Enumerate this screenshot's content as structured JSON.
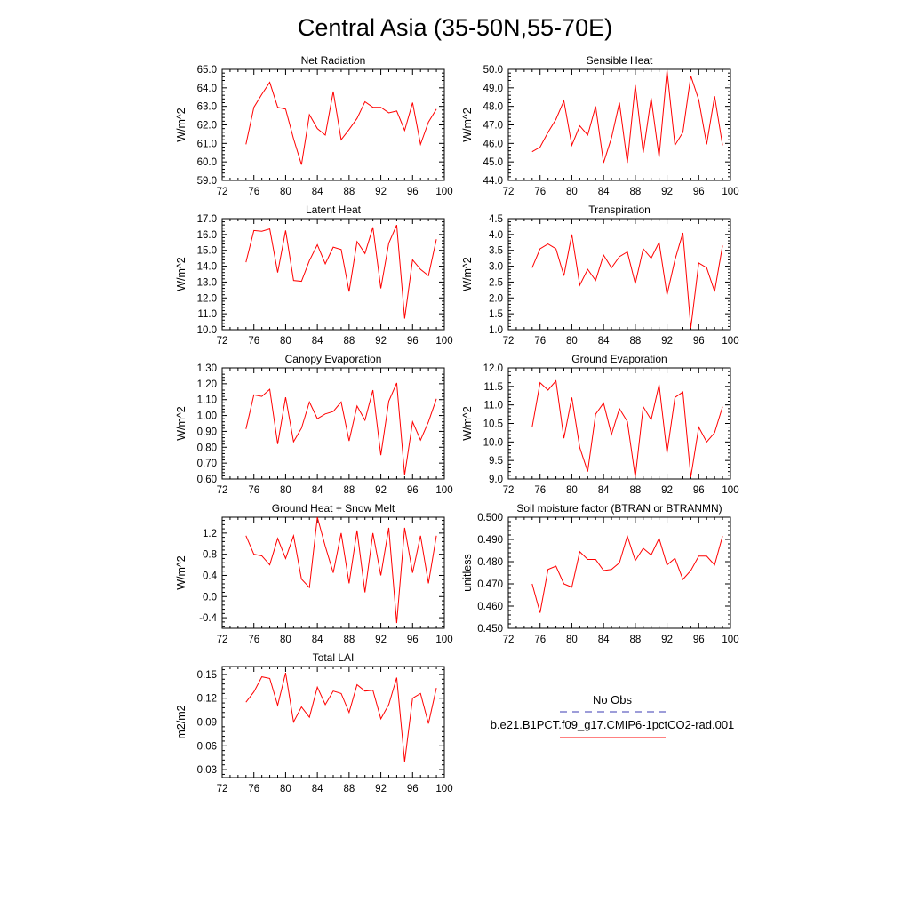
{
  "figure_title": "Central Asia (35-50N,55-70E)",
  "legend": {
    "obs_label": "No Obs",
    "obs_color": "#3b3bb3",
    "model_label": "b.e21.B1PCT.f09_g17.CMIP6-1pctCO2-rad.001",
    "model_color": "#ff0000"
  },
  "chart_data": [
    {
      "type": "line",
      "title": "Net Radiation",
      "ylabel": "W/m^2",
      "xlim": [
        72,
        100
      ],
      "x_ticks": [
        72,
        76,
        80,
        84,
        88,
        92,
        96,
        100
      ],
      "ylim": [
        59.0,
        65.0
      ],
      "y_ticks": [
        59.0,
        60.0,
        61.0,
        62.0,
        63.0,
        64.0,
        65.0
      ],
      "y_tick_labels": [
        "59.0",
        "60.0",
        "61.0",
        "62.0",
        "63.0",
        "64.0",
        "65.0"
      ],
      "x": [
        75,
        76,
        77,
        78,
        79,
        80,
        81,
        82,
        83,
        84,
        85,
        86,
        87,
        88,
        89,
        90,
        91,
        92,
        93,
        94,
        95,
        96,
        97,
        98,
        99
      ],
      "series": [
        {
          "values": [
            60.95,
            62.95,
            63.65,
            64.3,
            62.95,
            62.85,
            61.25,
            59.85,
            62.55,
            61.8,
            61.45,
            63.8,
            61.2,
            61.75,
            62.35,
            63.25,
            62.95,
            62.95,
            62.65,
            62.75,
            61.7,
            63.2,
            60.95,
            62.15,
            62.85
          ]
        }
      ]
    },
    {
      "type": "line",
      "title": "Sensible Heat",
      "ylabel": "W/m^2",
      "xlim": [
        72,
        100
      ],
      "x_ticks": [
        72,
        76,
        80,
        84,
        88,
        92,
        96,
        100
      ],
      "ylim": [
        44.0,
        50.0
      ],
      "y_ticks": [
        44.0,
        45.0,
        46.0,
        47.0,
        48.0,
        49.0,
        50.0
      ],
      "y_tick_labels": [
        "44.0",
        "45.0",
        "46.0",
        "47.0",
        "48.0",
        "49.0",
        "50.0"
      ],
      "x": [
        75,
        76,
        77,
        78,
        79,
        80,
        81,
        82,
        83,
        84,
        85,
        86,
        87,
        88,
        89,
        90,
        91,
        92,
        93,
        94,
        95,
        96,
        97,
        98,
        99
      ],
      "series": [
        {
          "values": [
            45.55,
            45.8,
            46.6,
            47.3,
            48.3,
            45.9,
            46.95,
            46.45,
            48.0,
            44.95,
            46.3,
            48.2,
            44.95,
            49.15,
            45.5,
            48.45,
            45.25,
            49.95,
            45.9,
            46.6,
            49.65,
            48.35,
            45.95,
            48.55,
            45.9
          ]
        }
      ]
    },
    {
      "type": "line",
      "title": "Latent Heat",
      "ylabel": "W/m^2",
      "xlim": [
        72,
        100
      ],
      "x_ticks": [
        72,
        76,
        80,
        84,
        88,
        92,
        96,
        100
      ],
      "ylim": [
        10.0,
        17.0
      ],
      "y_ticks": [
        10.0,
        11.0,
        12.0,
        13.0,
        14.0,
        15.0,
        16.0,
        17.0
      ],
      "y_tick_labels": [
        "10.0",
        "11.0",
        "12.0",
        "13.0",
        "14.0",
        "15.0",
        "16.0",
        "17.0"
      ],
      "x": [
        75,
        76,
        77,
        78,
        79,
        80,
        81,
        82,
        83,
        84,
        85,
        86,
        87,
        88,
        89,
        90,
        91,
        92,
        93,
        94,
        95,
        96,
        97,
        98,
        99
      ],
      "series": [
        {
          "values": [
            14.25,
            16.25,
            16.2,
            16.35,
            13.6,
            16.25,
            13.1,
            13.05,
            14.35,
            15.35,
            14.15,
            15.2,
            15.05,
            12.4,
            15.55,
            14.8,
            16.45,
            12.6,
            15.45,
            16.6,
            10.7,
            14.4,
            13.8,
            13.4,
            15.7
          ]
        }
      ]
    },
    {
      "type": "line",
      "title": "Transpiration",
      "ylabel": "W/m^2",
      "xlim": [
        72,
        100
      ],
      "x_ticks": [
        72,
        76,
        80,
        84,
        88,
        92,
        96,
        100
      ],
      "ylim": [
        1.0,
        4.5
      ],
      "y_ticks": [
        1.0,
        1.5,
        2.0,
        2.5,
        3.0,
        3.5,
        4.0,
        4.5
      ],
      "y_tick_labels": [
        "1.0",
        "1.5",
        "2.0",
        "2.5",
        "3.0",
        "3.5",
        "4.0",
        "4.5"
      ],
      "x": [
        75,
        76,
        77,
        78,
        79,
        80,
        81,
        82,
        83,
        84,
        85,
        86,
        87,
        88,
        89,
        90,
        91,
        92,
        93,
        94,
        95,
        96,
        97,
        98,
        99
      ],
      "series": [
        {
          "values": [
            2.95,
            3.55,
            3.7,
            3.55,
            2.7,
            4.0,
            2.4,
            2.9,
            2.55,
            3.35,
            2.95,
            3.3,
            3.45,
            2.45,
            3.55,
            3.25,
            3.75,
            2.1,
            3.2,
            4.05,
            1.05,
            3.1,
            2.95,
            2.2,
            3.65
          ]
        }
      ]
    },
    {
      "type": "line",
      "title": "Canopy Evaporation",
      "ylabel": "W/m^2",
      "xlim": [
        72,
        100
      ],
      "x_ticks": [
        72,
        76,
        80,
        84,
        88,
        92,
        96,
        100
      ],
      "ylim": [
        0.6,
        1.3
      ],
      "y_ticks": [
        0.6,
        0.7,
        0.8,
        0.9,
        1.0,
        1.1,
        1.2,
        1.3
      ],
      "y_tick_labels": [
        "0.60",
        "0.70",
        "0.80",
        "0.90",
        "1.00",
        "1.10",
        "1.20",
        "1.30"
      ],
      "x": [
        75,
        76,
        77,
        78,
        79,
        80,
        81,
        82,
        83,
        84,
        85,
        86,
        87,
        88,
        89,
        90,
        91,
        92,
        93,
        94,
        95,
        96,
        97,
        98,
        99
      ],
      "series": [
        {
          "values": [
            0.915,
            1.13,
            1.12,
            1.165,
            0.82,
            1.115,
            0.835,
            0.92,
            1.085,
            0.98,
            1.01,
            1.025,
            1.085,
            0.84,
            1.06,
            0.97,
            1.16,
            0.75,
            1.09,
            1.205,
            0.625,
            0.96,
            0.845,
            0.96,
            1.105
          ]
        }
      ]
    },
    {
      "type": "line",
      "title": "Ground Evaporation",
      "ylabel": "W/m^2",
      "xlim": [
        72,
        100
      ],
      "x_ticks": [
        72,
        76,
        80,
        84,
        88,
        92,
        96,
        100
      ],
      "ylim": [
        9.0,
        12.0
      ],
      "y_ticks": [
        9.0,
        9.5,
        10.0,
        10.5,
        11.0,
        11.5,
        12.0
      ],
      "y_tick_labels": [
        "9.0",
        "9.5",
        "10.0",
        "10.5",
        "11.0",
        "11.5",
        "12.0"
      ],
      "x": [
        75,
        76,
        77,
        78,
        79,
        80,
        81,
        82,
        83,
        84,
        85,
        86,
        87,
        88,
        89,
        90,
        91,
        92,
        93,
        94,
        95,
        96,
        97,
        98,
        99
      ],
      "series": [
        {
          "values": [
            10.4,
            11.6,
            11.4,
            11.65,
            10.1,
            11.2,
            9.85,
            9.2,
            10.75,
            11.05,
            10.2,
            10.9,
            10.55,
            9.05,
            10.95,
            10.6,
            11.55,
            9.7,
            11.2,
            11.35,
            9.05,
            10.4,
            10.0,
            10.25,
            10.95
          ]
        }
      ]
    },
    {
      "type": "line",
      "title": "Ground Heat + Snow Melt",
      "ylabel": "W/m^2",
      "xlim": [
        72,
        100
      ],
      "x_ticks": [
        72,
        76,
        80,
        84,
        88,
        92,
        96,
        100
      ],
      "ylim": [
        -0.6,
        1.5
      ],
      "y_ticks": [
        -0.4,
        0.0,
        0.4,
        0.8,
        1.2
      ],
      "y_tick_labels": [
        "-0.4",
        "0.0",
        "0.4",
        "0.8",
        "1.2"
      ],
      "x": [
        75,
        76,
        77,
        78,
        79,
        80,
        81,
        82,
        83,
        84,
        85,
        86,
        87,
        88,
        89,
        90,
        91,
        92,
        93,
        94,
        95,
        96,
        97,
        98,
        99
      ],
      "series": [
        {
          "values": [
            1.15,
            0.8,
            0.77,
            0.6,
            1.1,
            0.72,
            1.15,
            0.33,
            0.17,
            1.5,
            0.95,
            0.45,
            1.2,
            0.25,
            1.25,
            0.08,
            1.2,
            0.4,
            1.3,
            -0.5,
            1.3,
            0.45,
            1.15,
            0.25,
            1.15
          ]
        }
      ]
    },
    {
      "type": "line",
      "title": "Soil moisture factor (BTRAN or BTRANMN)",
      "ylabel": "unitless",
      "xlim": [
        72,
        100
      ],
      "x_ticks": [
        72,
        76,
        80,
        84,
        88,
        92,
        96,
        100
      ],
      "ylim": [
        0.45,
        0.5
      ],
      "y_ticks": [
        0.45,
        0.46,
        0.47,
        0.48,
        0.49,
        0.5
      ],
      "y_tick_labels": [
        "0.450",
        "0.460",
        "0.470",
        "0.480",
        "0.490",
        "0.500"
      ],
      "x": [
        75,
        76,
        77,
        78,
        79,
        80,
        81,
        82,
        83,
        84,
        85,
        86,
        87,
        88,
        89,
        90,
        91,
        92,
        93,
        94,
        95,
        96,
        97,
        98,
        99
      ],
      "series": [
        {
          "values": [
            0.47,
            0.457,
            0.4765,
            0.478,
            0.47,
            0.4685,
            0.4845,
            0.481,
            0.481,
            0.476,
            0.4765,
            0.4795,
            0.4915,
            0.4805,
            0.486,
            0.483,
            0.4905,
            0.4785,
            0.4815,
            0.472,
            0.476,
            0.4825,
            0.4825,
            0.4785,
            0.4915
          ]
        }
      ]
    },
    {
      "type": "line",
      "title": "Total LAI",
      "ylabel": "m2/m2",
      "xlim": [
        72,
        100
      ],
      "x_ticks": [
        72,
        76,
        80,
        84,
        88,
        92,
        96,
        100
      ],
      "ylim": [
        0.02,
        0.16
      ],
      "y_ticks": [
        0.03,
        0.06,
        0.09,
        0.12,
        0.15
      ],
      "y_tick_labels": [
        "0.03",
        "0.06",
        "0.09",
        "0.12",
        "0.15"
      ],
      "x": [
        75,
        76,
        77,
        78,
        79,
        80,
        81,
        82,
        83,
        84,
        85,
        86,
        87,
        88,
        89,
        90,
        91,
        92,
        93,
        94,
        95,
        96,
        97,
        98,
        99
      ],
      "series": [
        {
          "values": [
            0.115,
            0.128,
            0.147,
            0.145,
            0.111,
            0.152,
            0.09,
            0.109,
            0.096,
            0.134,
            0.112,
            0.129,
            0.126,
            0.102,
            0.137,
            0.129,
            0.13,
            0.094,
            0.112,
            0.146,
            0.04,
            0.12,
            0.126,
            0.088,
            0.133
          ]
        }
      ]
    }
  ]
}
